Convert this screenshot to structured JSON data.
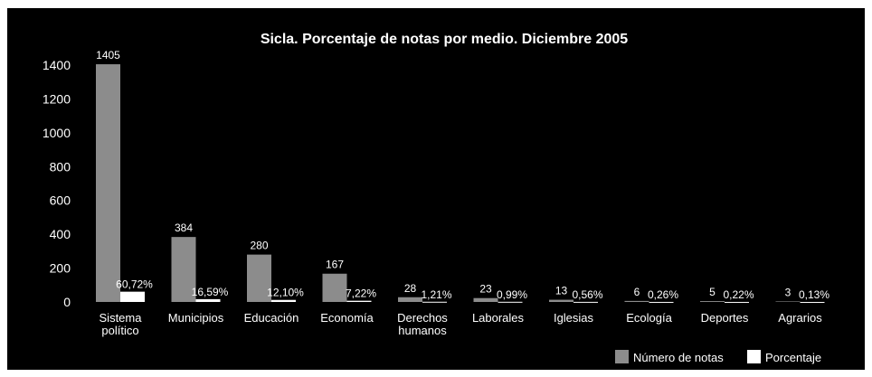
{
  "chart_data": {
    "type": "bar",
    "title": "Sicla. Porcentaje de notas por medio. Diciembre 2005",
    "xlabel": "",
    "ylabel": "",
    "ylim": [
      0,
      1400
    ],
    "yticks": [
      "0",
      "200",
      "400",
      "600",
      "800",
      "1000",
      "1200",
      "1400"
    ],
    "categories": [
      [
        "Sistema",
        "político"
      ],
      [
        "Municipios"
      ],
      [
        "Educación"
      ],
      [
        "Economía"
      ],
      [
        "Derechos",
        "humanos"
      ],
      [
        "Laborales"
      ],
      [
        "Iglesias"
      ],
      [
        "Ecología"
      ],
      [
        "Deportes"
      ],
      [
        "Agrarios"
      ]
    ],
    "series": [
      {
        "name": "Número de notas",
        "color": "#8c8c8c",
        "values": [
          1405,
          384,
          280,
          167,
          28,
          23,
          13,
          6,
          5,
          3
        ],
        "labels": [
          "1405",
          "384",
          "280",
          "167",
          "28",
          "23",
          "13",
          "6",
          "5",
          "3"
        ]
      },
      {
        "name": "Porcentaje",
        "color": "#ffffff",
        "values": [
          60.72,
          16.59,
          12.1,
          7.22,
          1.21,
          0.99,
          0.56,
          0.26,
          0.22,
          0.13
        ],
        "labels": [
          "60,72%",
          "16,59%",
          "12,10%",
          "7,22%",
          "1,21%",
          "0,99%",
          "0,56%",
          "0,26%",
          "0,22%",
          "0,13%"
        ]
      }
    ],
    "grid": false,
    "legend_position": "bottom-right",
    "colors": {
      "background": "#000000",
      "text": "#ffffff"
    }
  }
}
